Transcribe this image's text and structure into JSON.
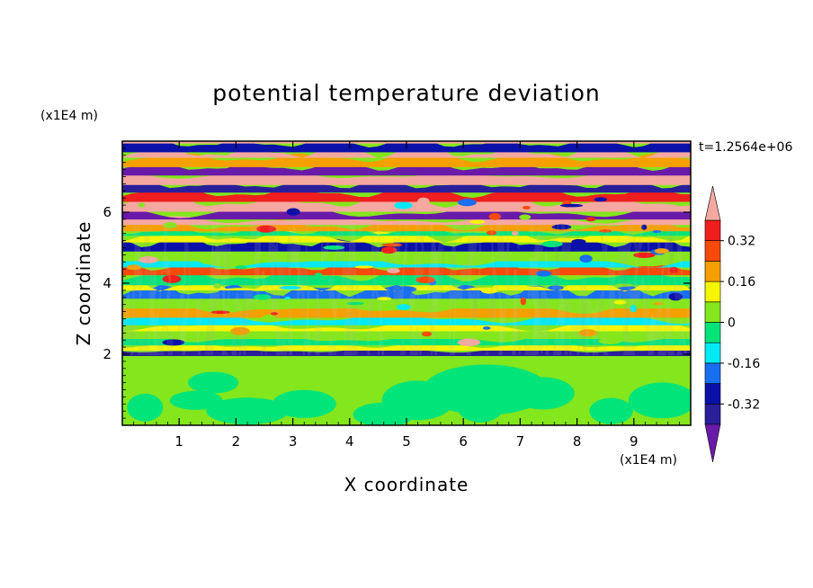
{
  "chart_data": {
    "type": "heatmap",
    "title": "potential temperature deviation",
    "xlabel": "X coordinate",
    "ylabel": "Z coordinate",
    "x_unit": "(x1E4 m)",
    "z_unit": "(x1E4 m)",
    "time_label": "t=1.2564e+06",
    "xlim": [
      0,
      10
    ],
    "zlim": [
      0,
      8
    ],
    "x_ticks": [
      "1",
      "2",
      "3",
      "4",
      "5",
      "6",
      "7",
      "8",
      "9"
    ],
    "z_ticks": [
      "2",
      "4",
      "6"
    ],
    "colorbar": {
      "levels": [
        -0.4,
        -0.32,
        -0.24,
        -0.16,
        -0.08,
        0,
        0.08,
        0.16,
        0.24,
        0.32,
        0.4
      ],
      "labels": [
        "0.32",
        "0.16",
        "0",
        "-0.16",
        "-0.32"
      ],
      "label_values": [
        0.32,
        0.16,
        0,
        -0.16,
        -0.32
      ],
      "colors": [
        "#6a1aa8",
        "#2a1e9a",
        "#0a10a8",
        "#1a6ef0",
        "#00eaf5",
        "#00e47a",
        "#84e61c",
        "#f5f500",
        "#f5a000",
        "#f54a0a",
        "#f01e1e",
        "#f5a8a0"
      ],
      "extend": "both"
    },
    "description_bands": [
      {
        "z_range": [
          0,
          2
        ],
        "dominant": [
          0,
          0.08
        ]
      },
      {
        "z_range": [
          2,
          5.5
        ],
        "dominant": [
          -0.16,
          0.24
        ]
      },
      {
        "z_range": [
          5.5,
          8
        ],
        "dominant": [
          -0.4,
          0.4
        ]
      }
    ]
  }
}
